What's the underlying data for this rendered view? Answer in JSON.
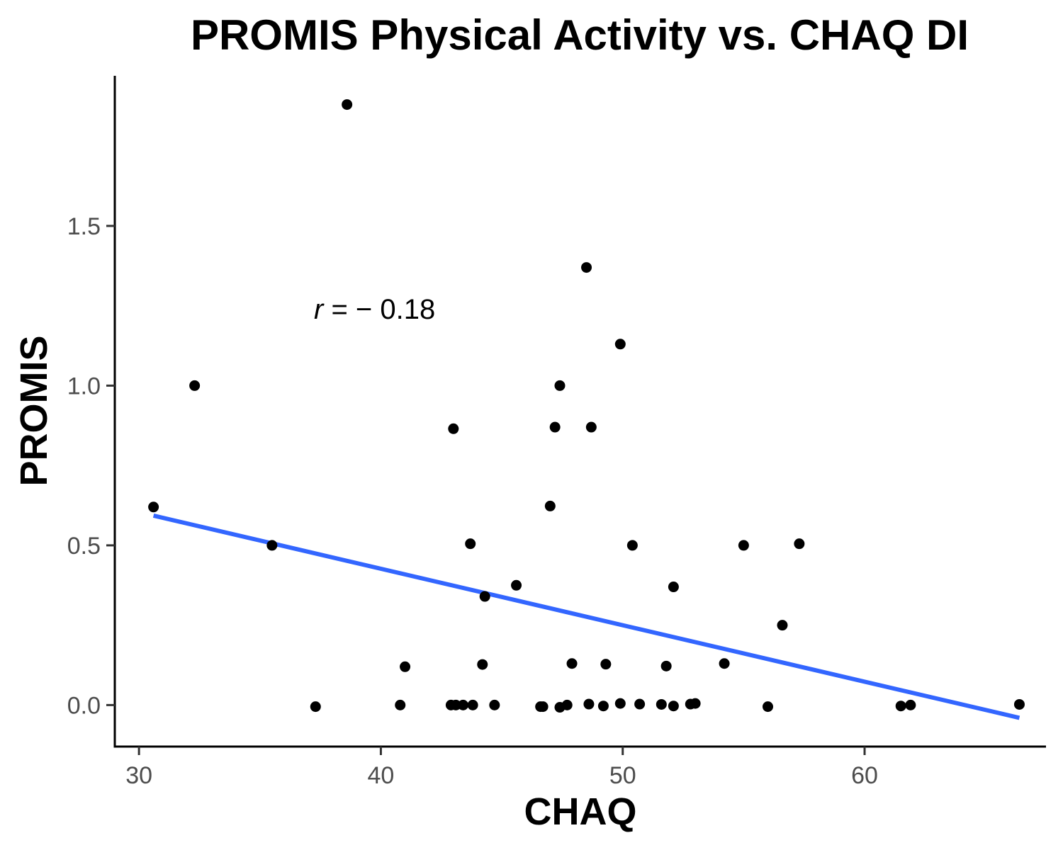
{
  "chart_data": {
    "type": "scatter",
    "title": "PROMIS Physical Activity vs. CHAQ DI",
    "xlabel": "CHAQ",
    "ylabel": "PROMIS",
    "xlim": [
      29,
      67.5
    ],
    "ylim": [
      -0.13,
      1.97
    ],
    "x_ticks": [
      30,
      40,
      50,
      60
    ],
    "y_ticks": [
      0.0,
      0.5,
      1.0,
      1.5
    ],
    "x_tick_labels": [
      "30",
      "40",
      "50",
      "60"
    ],
    "y_tick_labels": [
      "0.0",
      "0.5",
      "1.0",
      "1.5"
    ],
    "grid": false,
    "legend": "none",
    "annotation": {
      "r_symbol": "r",
      "text": " = − 0.18",
      "x": 37.3,
      "y": 1.24
    },
    "colors": {
      "points": "#000000",
      "trend_line": "#3366FF",
      "axis_text": "#4d4d4d"
    },
    "trend_line": {
      "x": [
        30.6,
        66.4
      ],
      "y": [
        0.593,
        -0.04
      ]
    },
    "series": [
      {
        "points": [
          {
            "x": 30.6,
            "y": 0.62
          },
          {
            "x": 32.3,
            "y": 1.0
          },
          {
            "x": 35.5,
            "y": 0.5
          },
          {
            "x": 37.3,
            "y": -0.005
          },
          {
            "x": 38.6,
            "y": 1.88
          },
          {
            "x": 40.8,
            "y": 0.0
          },
          {
            "x": 41.0,
            "y": 0.12
          },
          {
            "x": 42.9,
            "y": 0.0
          },
          {
            "x": 43.0,
            "y": 0.865
          },
          {
            "x": 43.1,
            "y": 0.0
          },
          {
            "x": 43.4,
            "y": 0.0
          },
          {
            "x": 43.7,
            "y": 0.505
          },
          {
            "x": 43.8,
            "y": 0.0
          },
          {
            "x": 44.2,
            "y": 0.127
          },
          {
            "x": 44.3,
            "y": 0.34
          },
          {
            "x": 44.7,
            "y": 0.0
          },
          {
            "x": 45.6,
            "y": 0.375
          },
          {
            "x": 46.6,
            "y": -0.005
          },
          {
            "x": 46.7,
            "y": -0.005
          },
          {
            "x": 47.0,
            "y": 0.623
          },
          {
            "x": 47.2,
            "y": 0.87
          },
          {
            "x": 47.4,
            "y": 1.0
          },
          {
            "x": 47.4,
            "y": -0.007
          },
          {
            "x": 47.7,
            "y": 0.0
          },
          {
            "x": 47.9,
            "y": 0.13
          },
          {
            "x": 48.5,
            "y": 1.37
          },
          {
            "x": 48.6,
            "y": 0.003
          },
          {
            "x": 48.7,
            "y": 0.87
          },
          {
            "x": 49.2,
            "y": -0.003
          },
          {
            "x": 49.3,
            "y": 0.128
          },
          {
            "x": 49.9,
            "y": 1.13
          },
          {
            "x": 49.9,
            "y": 0.005
          },
          {
            "x": 50.4,
            "y": 0.5
          },
          {
            "x": 50.7,
            "y": 0.003
          },
          {
            "x": 51.6,
            "y": 0.002
          },
          {
            "x": 51.8,
            "y": 0.122
          },
          {
            "x": 52.1,
            "y": -0.003
          },
          {
            "x": 52.1,
            "y": 0.37
          },
          {
            "x": 52.8,
            "y": 0.003
          },
          {
            "x": 53.0,
            "y": 0.005
          },
          {
            "x": 54.2,
            "y": 0.13
          },
          {
            "x": 55.0,
            "y": 0.5
          },
          {
            "x": 56.0,
            "y": -0.005
          },
          {
            "x": 56.6,
            "y": 0.25
          },
          {
            "x": 57.3,
            "y": 0.505
          },
          {
            "x": 61.5,
            "y": -0.003
          },
          {
            "x": 61.9,
            "y": 0.0
          },
          {
            "x": 66.4,
            "y": 0.002
          }
        ]
      }
    ]
  }
}
